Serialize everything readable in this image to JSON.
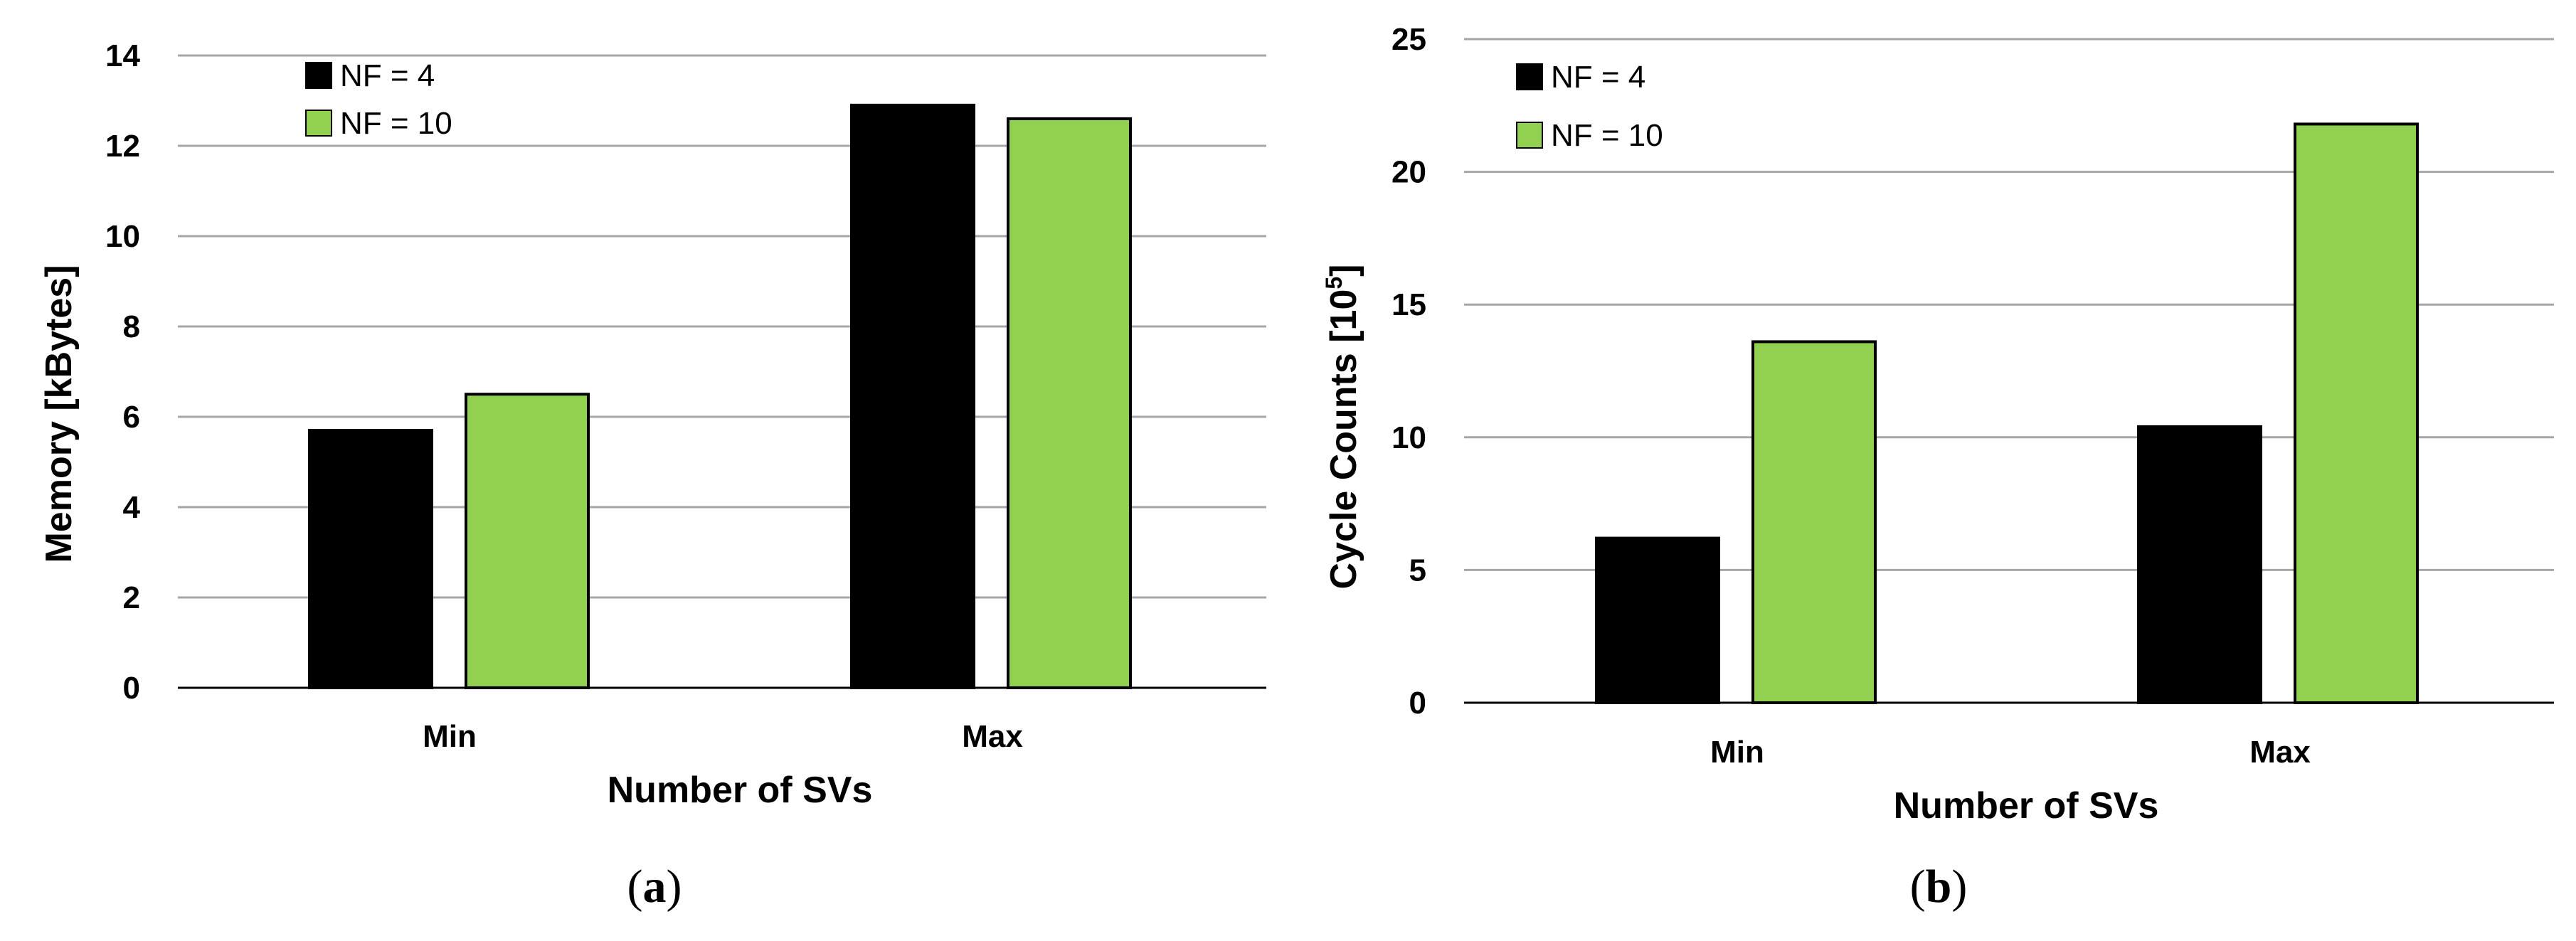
{
  "colors": {
    "nf4": "#000000",
    "nf10": "#92d050",
    "grid": "#a6a6a6",
    "axis": "#000000"
  },
  "chart_data": [
    {
      "type": "bar",
      "panel_label": "a",
      "title": "",
      "xlabel": "Number of SVs",
      "ylabel": "Memory [kBytes]",
      "ylim": [
        0,
        14
      ],
      "yticks": [
        "0",
        "2",
        "4",
        "6",
        "8",
        "10",
        "12",
        "14"
      ],
      "categories": [
        "Min",
        "Max"
      ],
      "series": [
        {
          "name": "NF = 4",
          "values": [
            5.7,
            12.9
          ]
        },
        {
          "name": "NF = 10",
          "values": [
            6.5,
            12.6
          ]
        }
      ],
      "grid": true,
      "legend": "top-left"
    },
    {
      "type": "bar",
      "panel_label": "b",
      "title": "",
      "xlabel": "Number of SVs",
      "ylabel_main": "Cycle Counts [10",
      "ylabel_sup": "5",
      "ylabel_end": "]",
      "ylim": [
        0,
        25
      ],
      "yticks": [
        "0",
        "5",
        "10",
        "15",
        "20",
        "25"
      ],
      "categories": [
        "Min",
        "Max"
      ],
      "series": [
        {
          "name": "NF = 4",
          "values": [
            6.2,
            10.4
          ]
        },
        {
          "name": "NF = 10",
          "values": [
            13.6,
            21.8
          ]
        }
      ],
      "grid": true,
      "legend": "top-left"
    }
  ]
}
